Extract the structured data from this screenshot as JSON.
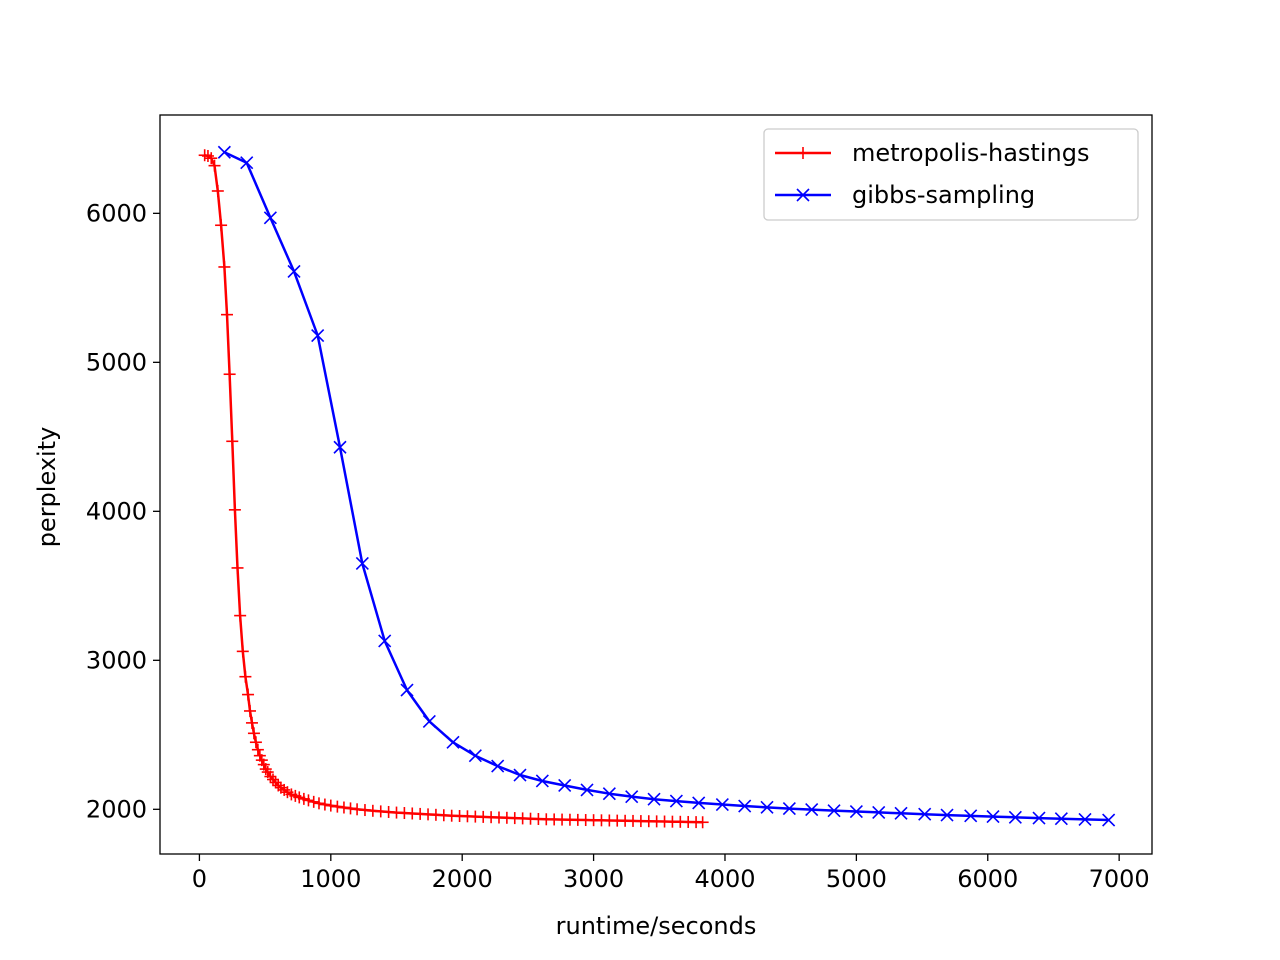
{
  "chart_data": {
    "type": "line",
    "xlabel": "runtime/seconds",
    "ylabel": "perplexity",
    "xlim": [
      -300,
      7250
    ],
    "ylim": [
      1700,
      6660
    ],
    "x_ticks": [
      0,
      1000,
      2000,
      3000,
      4000,
      5000,
      6000,
      7000
    ],
    "y_ticks": [
      2000,
      3000,
      4000,
      5000,
      6000
    ],
    "grid": false,
    "legend_position": "top-right",
    "series": [
      {
        "name": "metropolis-hastings",
        "color": "#ff0000",
        "marker": "plus",
        "x": [
          40,
          65,
          90,
          115,
          140,
          165,
          190,
          210,
          230,
          250,
          270,
          290,
          310,
          330,
          350,
          370,
          385,
          400,
          415,
          430,
          445,
          460,
          475,
          490,
          505,
          520,
          540,
          560,
          580,
          600,
          620,
          645,
          670,
          700,
          730,
          760,
          795,
          830,
          870,
          910,
          955,
          1000,
          1050,
          1100,
          1150,
          1200,
          1260,
          1320,
          1380,
          1440,
          1500,
          1560,
          1620,
          1680,
          1740,
          1800,
          1860,
          1920,
          1980,
          2040,
          2100,
          2160,
          2220,
          2280,
          2340,
          2400,
          2460,
          2520,
          2580,
          2640,
          2700,
          2760,
          2820,
          2880,
          2940,
          3000,
          3060,
          3120,
          3180,
          3240,
          3300,
          3360,
          3420,
          3480,
          3540,
          3600,
          3660,
          3720,
          3780,
          3830
        ],
        "y": [
          6390,
          6385,
          6370,
          6320,
          6150,
          5920,
          5640,
          5320,
          4920,
          4470,
          4010,
          3620,
          3300,
          3060,
          2890,
          2770,
          2660,
          2580,
          2510,
          2450,
          2400,
          2360,
          2330,
          2300,
          2270,
          2250,
          2220,
          2200,
          2180,
          2160,
          2145,
          2130,
          2115,
          2100,
          2090,
          2080,
          2070,
          2060,
          2050,
          2040,
          2032,
          2025,
          2018,
          2012,
          2006,
          2000,
          1995,
          1990,
          1986,
          1982,
          1978,
          1975,
          1972,
          1969,
          1966,
          1963,
          1960,
          1957,
          1955,
          1953,
          1951,
          1949,
          1947,
          1945,
          1943,
          1941,
          1939,
          1937,
          1935,
          1933,
          1932,
          1931,
          1930,
          1929,
          1928,
          1927,
          1926,
          1925,
          1924,
          1923,
          1922,
          1921,
          1920,
          1919,
          1918,
          1917,
          1916,
          1915,
          1914,
          1913
        ]
      },
      {
        "name": "gibbs-sampling",
        "color": "#0000ff",
        "marker": "x",
        "x": [
          190,
          360,
          540,
          720,
          900,
          1070,
          1240,
          1410,
          1580,
          1750,
          1930,
          2100,
          2270,
          2440,
          2610,
          2780,
          2950,
          3120,
          3290,
          3460,
          3630,
          3800,
          3980,
          4150,
          4320,
          4490,
          4660,
          4830,
          5000,
          5170,
          5340,
          5520,
          5690,
          5870,
          6040,
          6210,
          6390,
          6560,
          6740,
          6920
        ],
        "y": [
          6410,
          6340,
          5970,
          5610,
          5180,
          4430,
          3650,
          3130,
          2800,
          2590,
          2450,
          2360,
          2290,
          2230,
          2190,
          2160,
          2130,
          2105,
          2085,
          2068,
          2055,
          2043,
          2032,
          2022,
          2013,
          2005,
          1998,
          1991,
          1985,
          1979,
          1973,
          1967,
          1961,
          1956,
          1951,
          1946,
          1941,
          1937,
          1932,
          1928
        ]
      }
    ]
  }
}
